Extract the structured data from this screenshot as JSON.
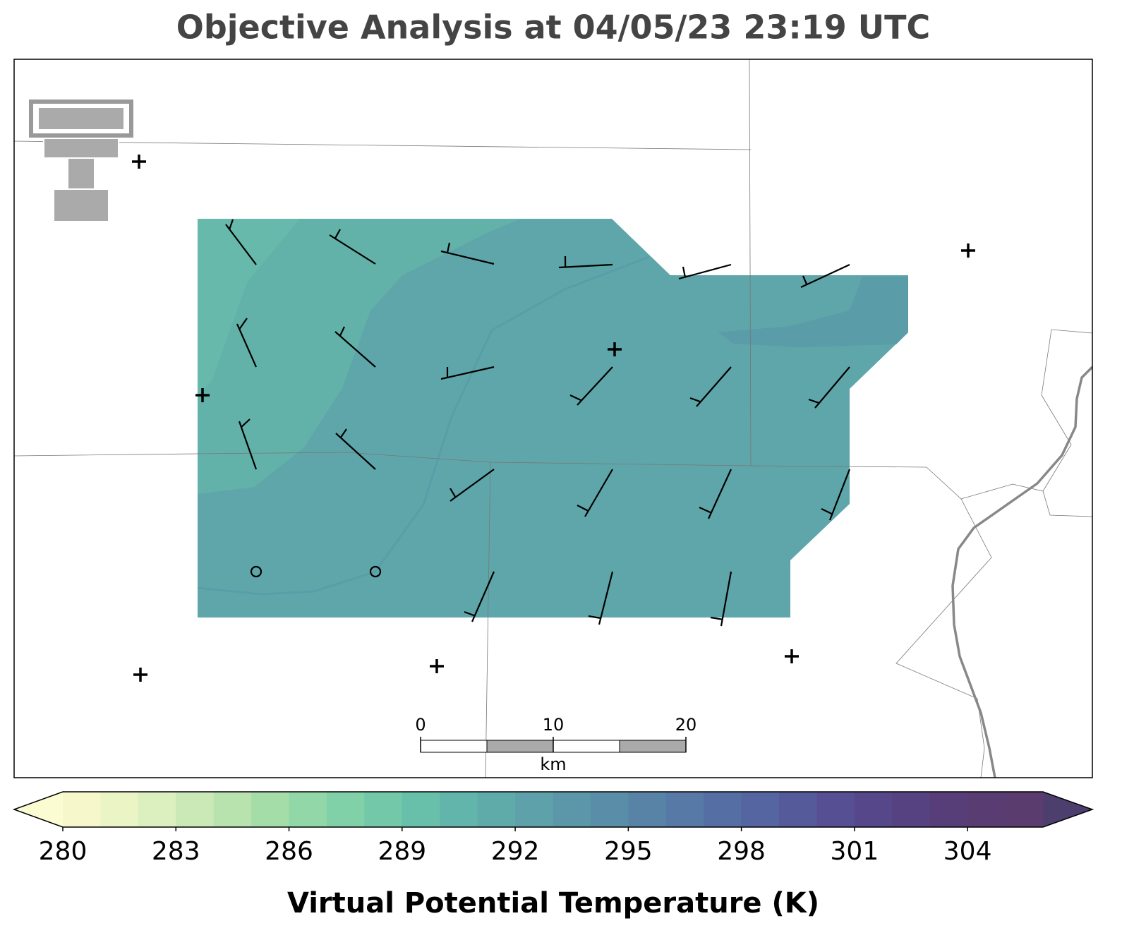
{
  "title": "Objective Analysis at 04/05/23 23:19 UTC",
  "colorbar": {
    "label": "Virtual Potential Temperature (K)",
    "xlim": [
      280,
      306
    ],
    "bins": [
      280,
      281,
      282,
      283,
      284,
      285,
      286,
      287,
      288,
      289,
      290,
      291,
      292,
      293,
      294,
      295,
      296,
      297,
      298,
      299,
      300,
      301,
      302,
      303,
      304,
      305,
      306
    ],
    "colors": [
      "#f6f8cc",
      "#eaf4c5",
      "#dcefbe",
      "#cbe9b6",
      "#b8e3ae",
      "#a5dda9",
      "#92d7a8",
      "#80d0a8",
      "#72c8a9",
      "#68bfaa",
      "#62b5aa",
      "#5fabaa",
      "#5ea1aa",
      "#5c97a9",
      "#5a8da8",
      "#5883a7",
      "#5679a6",
      "#556fa4",
      "#5465a1",
      "#555a9b",
      "#564f94",
      "#56478a",
      "#574281",
      "#583e78",
      "#593c72",
      "#5a3d6e"
    ],
    "under_color": "#fbfcd2",
    "over_color": "#4c3f6e",
    "ticks": [
      280,
      283,
      286,
      289,
      292,
      295,
      298,
      301,
      304
    ]
  },
  "scalebar": {
    "xlim": [
      0,
      20
    ],
    "ticks": [
      0,
      10,
      20
    ],
    "unit": "km"
  }
}
